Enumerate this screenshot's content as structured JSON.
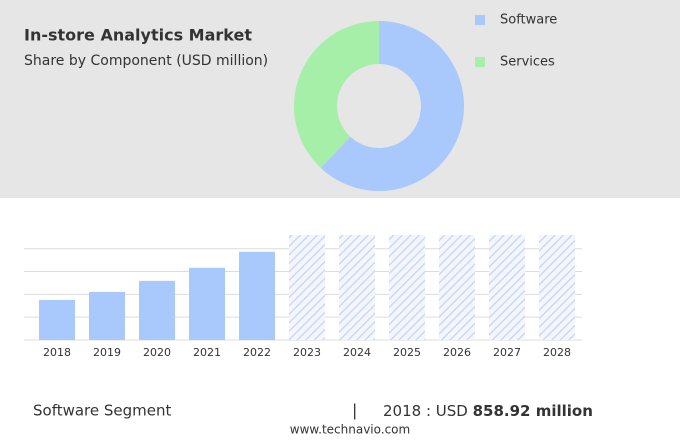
{
  "chart_data": [
    {
      "type": "pie",
      "title": "In-store Analytics Market",
      "subtitle": "Share by Component (USD million)",
      "categories": [
        "Software",
        "Services"
      ],
      "values": [
        62,
        38
      ],
      "colors": [
        "#a9c8fc",
        "#a6efa8"
      ]
    },
    {
      "type": "bar",
      "categories": [
        "2018",
        "2019",
        "2020",
        "2021",
        "2022",
        "2023",
        "2024",
        "2025",
        "2026",
        "2027",
        "2028"
      ],
      "values": [
        858.92,
        1030,
        1267,
        1546,
        1890,
        null,
        null,
        null,
        null,
        null,
        null
      ],
      "color": "#a9c8fc",
      "ylim": [
        0,
        2250
      ],
      "grid": true
    }
  ],
  "footer": {
    "segment": "Software Segment",
    "year_text": "2018 : USD",
    "value_text": "858.92 million",
    "site": "www.technavio.com"
  }
}
